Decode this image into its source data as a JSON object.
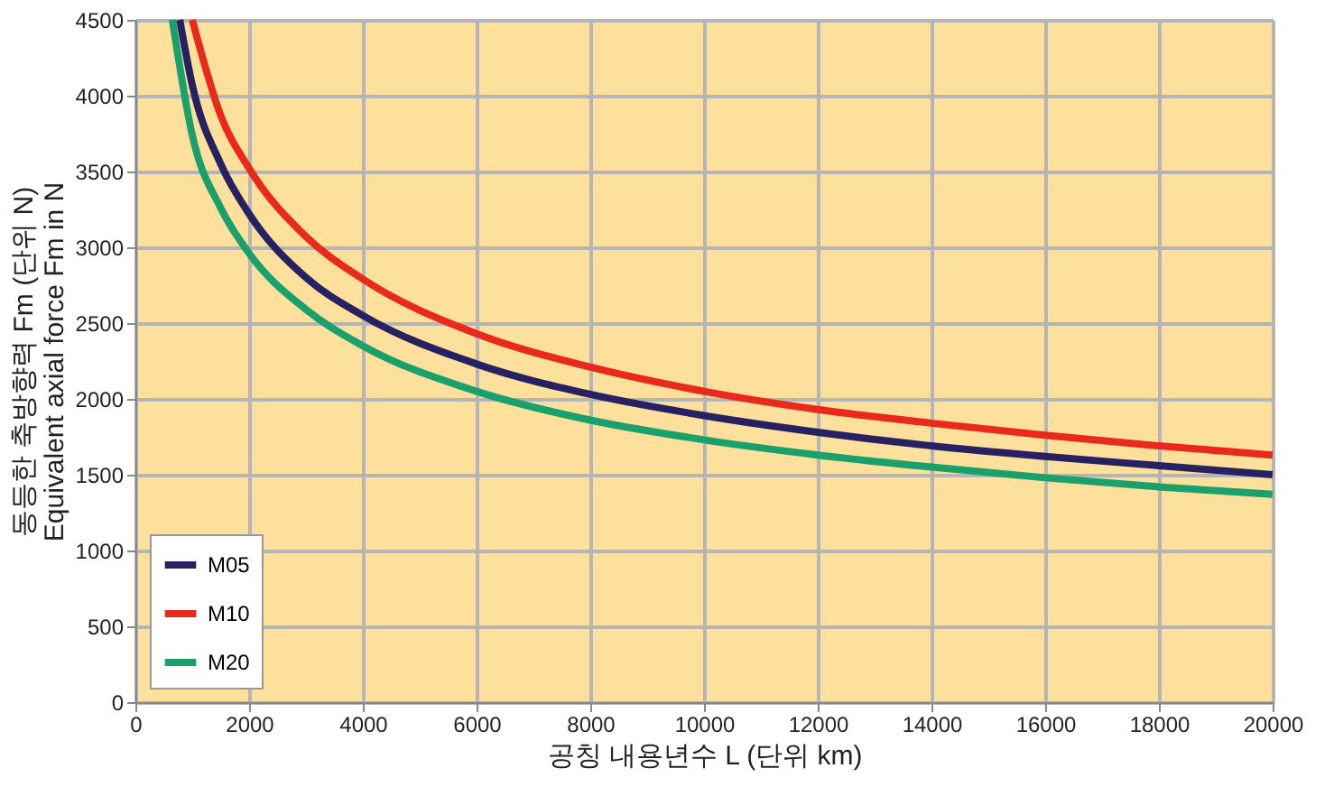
{
  "chart_data": {
    "type": "line",
    "xlabel": "공칭 내용년수 L (단위 km)",
    "ylabel": "동등한 축방향력 Fm (단위 N)\nEquivalent axial force Fm in N",
    "xlim": [
      0,
      20000
    ],
    "xticks": [
      0,
      2000,
      4000,
      6000,
      8000,
      10000,
      12000,
      14000,
      16000,
      18000,
      20000
    ],
    "ylim": [
      0,
      4500
    ],
    "yticks": [
      0,
      500,
      1000,
      1500,
      2000,
      2500,
      3000,
      3500,
      4000,
      4500
    ],
    "grid": true,
    "legend": "bottom left",
    "line_style": "solid",
    "marker": "none",
    "series": [
      {
        "name": "M05",
        "color": "#262262",
        "x": [
          780,
          1000,
          1500,
          2000,
          3000,
          4000,
          6000,
          8000,
          10000,
          12000,
          14000,
          16000,
          18000,
          20000
        ],
        "values": [
          4500,
          4070,
          3550,
          3220,
          2800,
          2550,
          2230,
          2030,
          1890,
          1780,
          1690,
          1620,
          1560,
          1500
        ]
      },
      {
        "name": "M10",
        "color": "#e8291c",
        "x": [
          1000,
          1500,
          2000,
          3000,
          4000,
          6000,
          8000,
          10000,
          12000,
          14000,
          16000,
          18000,
          20000
        ],
        "values": [
          4500,
          3870,
          3520,
          3070,
          2790,
          2430,
          2210,
          2050,
          1930,
          1840,
          1760,
          1690,
          1630
        ]
      },
      {
        "name": "M20",
        "color": "#1aa06b",
        "x": [
          650,
          1000,
          1500,
          2000,
          3000,
          4000,
          6000,
          8000,
          10000,
          12000,
          14000,
          16000,
          18000,
          20000
        ],
        "values": [
          4500,
          3740,
          3260,
          2960,
          2590,
          2350,
          2050,
          1860,
          1730,
          1630,
          1550,
          1480,
          1420,
          1370
        ]
      }
    ]
  }
}
